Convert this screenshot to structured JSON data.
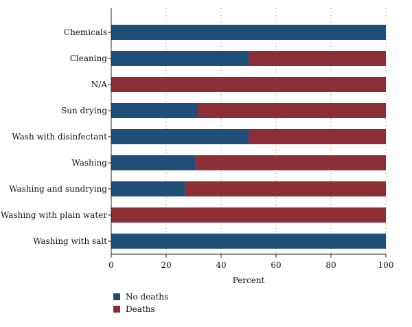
{
  "chart_data": {
    "type": "bar",
    "orientation": "horizontal",
    "stacked": true,
    "categories": [
      "Chemicals",
      "Cleaning",
      "N/A",
      "Sun drying",
      "Wash with disinfectant",
      "Washing",
      "Washing and sundrying",
      "Washing with plain water",
      "Washing with salt"
    ],
    "series": [
      {
        "name": "No deaths",
        "color": "#1f4e79",
        "values": [
          100,
          50,
          0,
          31.5,
          50,
          30.8,
          26.9,
          0,
          100
        ]
      },
      {
        "name": "Deaths",
        "color": "#8b2e35",
        "values": [
          0,
          50,
          100,
          68.5,
          50,
          69.2,
          73.1,
          100,
          0
        ]
      }
    ],
    "xlabel": "Percent",
    "xlim": [
      0,
      100
    ],
    "xticks": [
      "0",
      "20",
      "40",
      "60",
      "80",
      "100"
    ],
    "grid": "vertical dotted",
    "legend_position": "bottom-left"
  }
}
